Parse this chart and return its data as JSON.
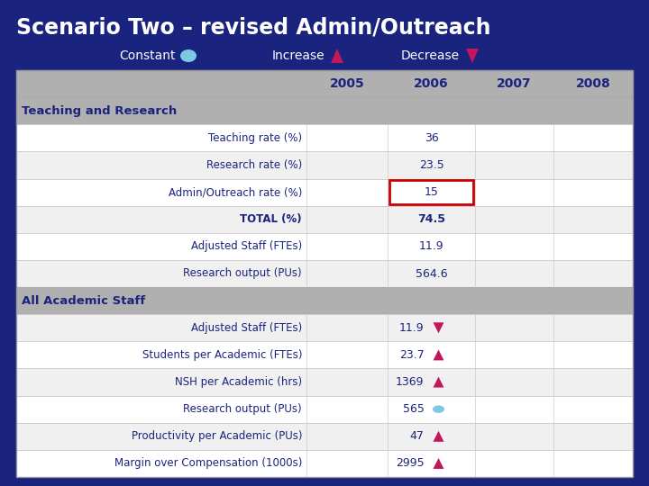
{
  "title": "Scenario Two – revised Admin/Outreach",
  "title_color": "#FFFFFF",
  "bg_color": "#1a237e",
  "header_bg": "#B0B0B0",
  "section_bg": "#B0B0B0",
  "col_headers": [
    "2005",
    "2006",
    "2007",
    "2008"
  ],
  "sections": [
    {
      "name": "Teaching and Research",
      "rows": [
        {
          "label": "Teaching rate (%)",
          "values": [
            "",
            "36",
            "",
            ""
          ],
          "bold": false,
          "highlight": false,
          "icon": null
        },
        {
          "label": "Research rate (%)",
          "values": [
            "",
            "23.5",
            "",
            ""
          ],
          "bold": false,
          "highlight": false,
          "icon": null
        },
        {
          "label": "Admin/Outreach rate (%)",
          "values": [
            "",
            "15",
            "",
            ""
          ],
          "bold": false,
          "highlight": true,
          "icon": null
        },
        {
          "label": "TOTAL (%)",
          "values": [
            "",
            "74.5",
            "",
            ""
          ],
          "bold": true,
          "highlight": false,
          "icon": null
        },
        {
          "label": "Adjusted Staff (FTEs)",
          "values": [
            "",
            "11.9",
            "",
            ""
          ],
          "bold": false,
          "highlight": false,
          "icon": null
        },
        {
          "label": "Research output (PUs)",
          "values": [
            "",
            "564.6",
            "",
            ""
          ],
          "bold": false,
          "highlight": false,
          "icon": null
        }
      ]
    },
    {
      "name": "All Academic Staff",
      "rows": [
        {
          "label": "Adjusted Staff (FTEs)",
          "values": [
            "",
            "11.9",
            "",
            ""
          ],
          "bold": false,
          "highlight": false,
          "icon": "decrease"
        },
        {
          "label": "Students per Academic (FTEs)",
          "values": [
            "",
            "23.7",
            "",
            ""
          ],
          "bold": false,
          "highlight": false,
          "icon": "increase"
        },
        {
          "label": "NSH per Academic (hrs)",
          "values": [
            "",
            "1369",
            "",
            ""
          ],
          "bold": false,
          "highlight": false,
          "icon": "increase"
        },
        {
          "label": "Research output (PUs)",
          "values": [
            "",
            "565",
            "",
            ""
          ],
          "bold": false,
          "highlight": false,
          "icon": "constant"
        },
        {
          "label": "Productivity per Academic (PUs)",
          "values": [
            "",
            "47",
            "",
            ""
          ],
          "bold": false,
          "highlight": false,
          "icon": "increase"
        },
        {
          "label": "Margin over Compensation (1000s)",
          "values": [
            "",
            "2995",
            "",
            ""
          ],
          "bold": false,
          "highlight": false,
          "icon": "increase"
        }
      ]
    }
  ],
  "legend": {
    "constant_color": "#7EC8E3",
    "increase_color": "#C2185B",
    "decrease_color": "#C2185B",
    "text_color": "#FFFFFF"
  },
  "highlight_border_color": "#CC0000",
  "row_colors": [
    "#FFFFFF",
    "#F0F0F0"
  ],
  "cell_border_color": "#CCCCCC",
  "text_color": "#1a237e"
}
